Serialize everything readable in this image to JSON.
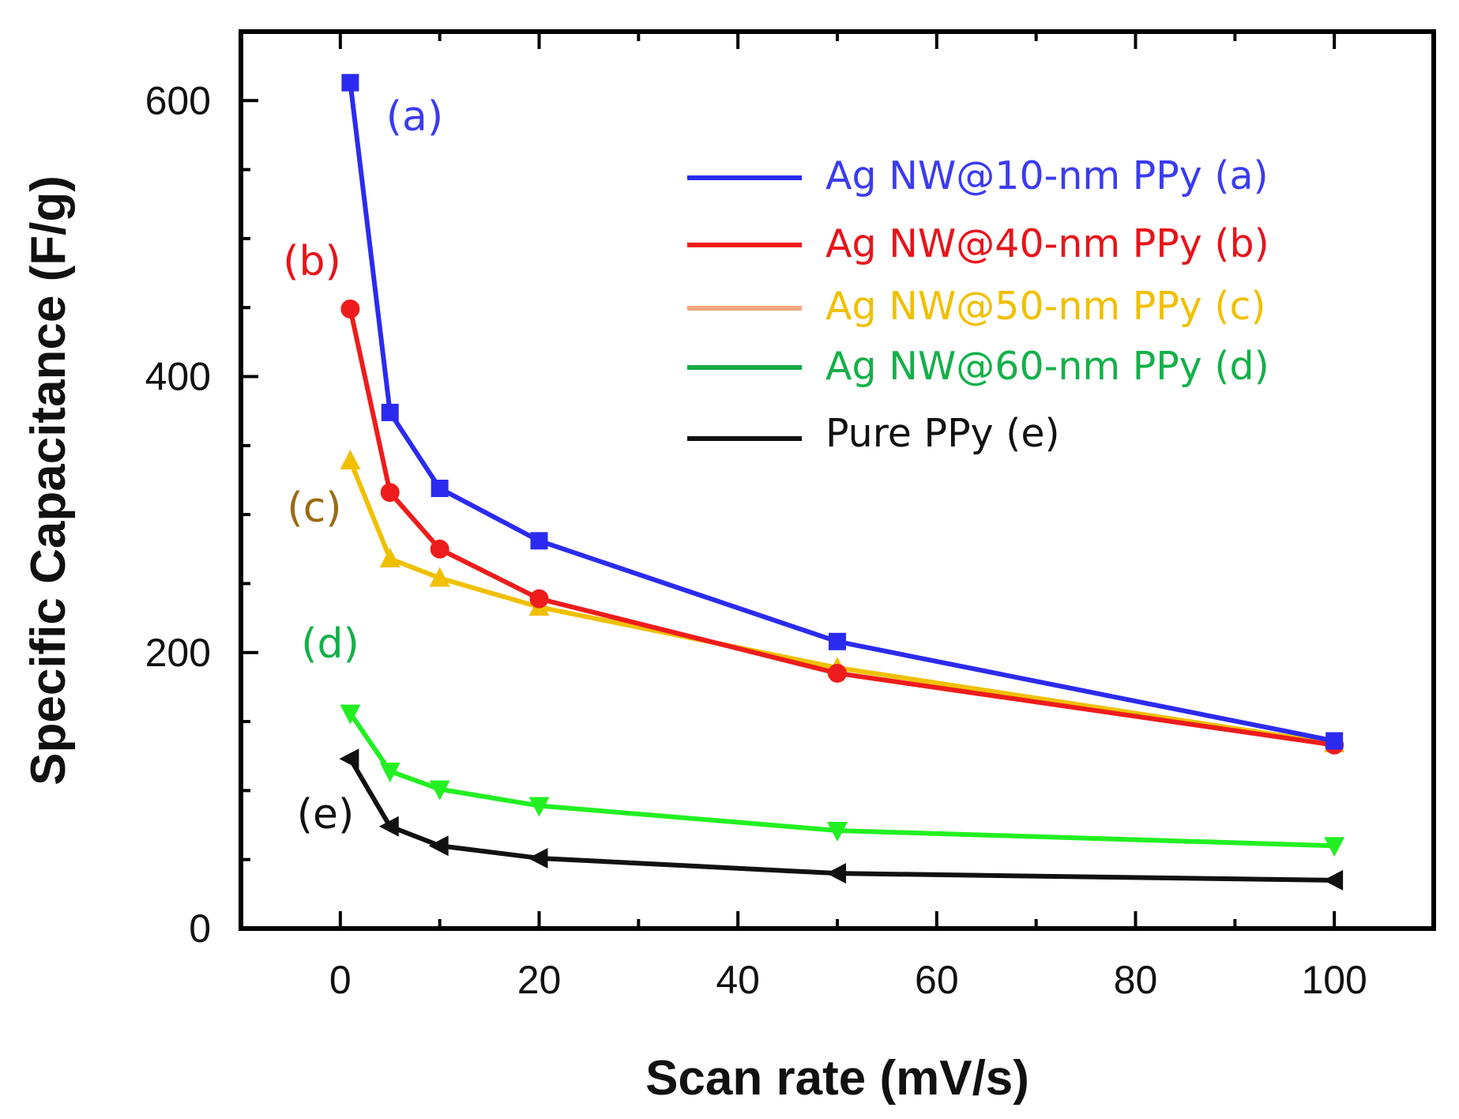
{
  "chart_data": {
    "type": "line",
    "title": "",
    "xlabel": "Scan rate (mV/s)",
    "ylabel": "Specific Capacitance (F/g)",
    "xlim": [
      -10,
      110
    ],
    "ylim": [
      0,
      650
    ],
    "xticks": [
      0,
      20,
      40,
      60,
      80,
      100
    ],
    "xtick_labels": [
      "0",
      "20",
      "40",
      "60",
      "80",
      "100"
    ],
    "yticks": [
      0,
      200,
      400,
      600
    ],
    "ytick_labels": [
      "0",
      "200",
      "400",
      "600"
    ],
    "grid": false,
    "legend_position": "top-right",
    "series": [
      {
        "name": "Ag NW@10-nm PPy (a)",
        "annotation": "(a)",
        "color": "#2b2bf0",
        "label_color": "#3b3bf2",
        "annotation_color": "#3b3bf2",
        "marker": "square",
        "x": [
          1,
          5,
          10,
          20,
          50,
          100
        ],
        "y": [
          613,
          374,
          319,
          281,
          208,
          136
        ]
      },
      {
        "name": "Ag NW@40-nm PPy (b)",
        "annotation": "(b)",
        "color": "#ee1c1c",
        "label_color": "#e8141a",
        "annotation_color": "#e8141a",
        "marker": "circle",
        "x": [
          1,
          5,
          10,
          20,
          50,
          100
        ],
        "y": [
          449,
          316,
          275,
          239,
          185,
          133
        ]
      },
      {
        "name": "Ag NW@50-nm PPy (c)",
        "annotation": "(c)",
        "color": "#f0c000",
        "legend_line_color": "#f7a680",
        "label_color": "#f0c000",
        "annotation_color": "#9c6b12",
        "marker": "triangle-up",
        "x": [
          1,
          5,
          10,
          20,
          50,
          100
        ],
        "y": [
          339,
          268,
          254,
          233,
          189,
          134
        ]
      },
      {
        "name": "Ag NW@60-nm PPy (d)",
        "annotation": "(d)",
        "color": "#22f022",
        "legend_line_color": "#11aa44",
        "label_color": "#14b04a",
        "annotation_color": "#14b04a",
        "marker": "triangle-down",
        "x": [
          1,
          5,
          10,
          20,
          50,
          100
        ],
        "y": [
          156,
          114,
          101,
          89,
          71,
          60
        ]
      },
      {
        "name": "Pure PPy (e)",
        "annotation": "(e)",
        "color": "#111111",
        "label_color": "#111111",
        "annotation_color": "#111111",
        "marker": "triangle-left",
        "x": [
          1,
          5,
          10,
          20,
          50,
          100
        ],
        "y": [
          123,
          74,
          60,
          51,
          40,
          35
        ]
      }
    ]
  }
}
